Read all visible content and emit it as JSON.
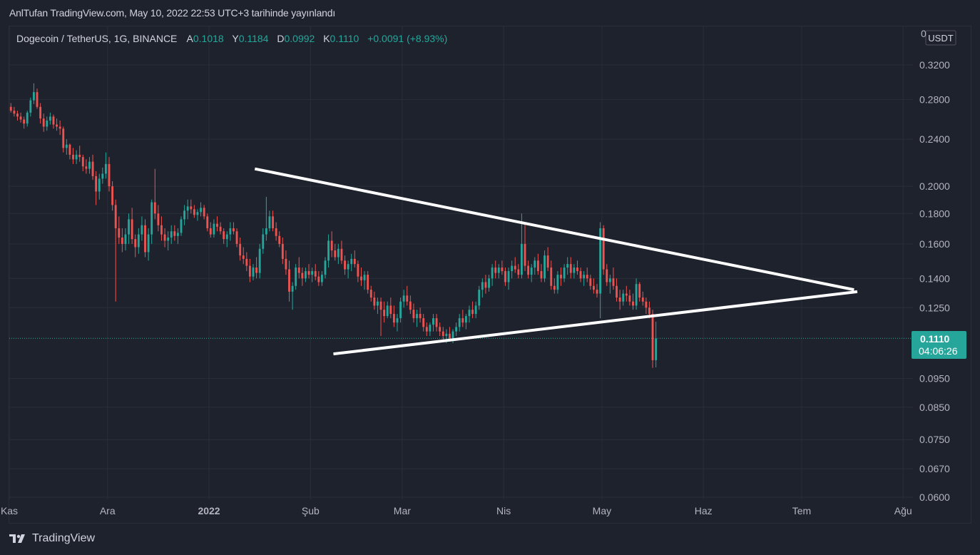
{
  "header": {
    "published": "AnlTufan TradingView.com, May 10, 2022 22:53 UTC+3 tarihinde yayınlandı"
  },
  "legend": {
    "symbol": "Dogecoin / TetherUS, 1G, BINANCE",
    "open_label": "A",
    "open": "0.1018",
    "high_label": "Y",
    "high": "0.1184",
    "low_label": "D",
    "low": "0.0992",
    "close_label": "K",
    "close": "0.1110",
    "change": "+0.0091 (+8.93%)"
  },
  "price_axis": {
    "currency": "USDT",
    "current_price": "0.1110",
    "countdown": "04:06:26"
  },
  "footer": {
    "brand": "TradingView"
  },
  "colors": {
    "background": "#1e222d",
    "up": "#26a69a",
    "down": "#ef5350",
    "grid": "#2a2e39",
    "text": "#b2b5be",
    "trendline": "#ffffff"
  },
  "chart_data": {
    "type": "candlestick",
    "scale": "log",
    "y_ticks": [
      0.32,
      0.28,
      0.24,
      0.2,
      0.18,
      0.16,
      0.14,
      0.125,
      0.095,
      0.085,
      0.075,
      0.067,
      0.06
    ],
    "y_tick_labels": [
      "0.3200",
      "0.2800",
      "0.2400",
      "0.2000",
      "0.1800",
      "0.1600",
      "0.1400",
      "0.1250",
      "0.0950",
      "0.0850",
      "0.0750",
      "0.0670",
      "0.0600"
    ],
    "y_top_partial_label": "0",
    "x_start": "2021-11-01",
    "x_end": "2022-08-04",
    "x_ticks": [
      {
        "date": "2021-11-01",
        "label": "Kas",
        "bold": false
      },
      {
        "date": "2021-12-01",
        "label": "Ara",
        "bold": false
      },
      {
        "date": "2022-01-01",
        "label": "2022",
        "bold": true
      },
      {
        "date": "2022-02-01",
        "label": "Şub",
        "bold": false
      },
      {
        "date": "2022-03-01",
        "label": "Mar",
        "bold": false
      },
      {
        "date": "2022-04-01",
        "label": "Nis",
        "bold": false
      },
      {
        "date": "2022-05-01",
        "label": "May",
        "bold": false
      },
      {
        "date": "2022-06-01",
        "label": "Haz",
        "bold": false
      },
      {
        "date": "2022-07-01",
        "label": "Tem",
        "bold": false
      },
      {
        "date": "2022-08-01",
        "label": "Ağu",
        "bold": false
      }
    ],
    "last_price": 0.111,
    "candles_ohlc_daily_from_2021-11-01": [
      [
        0.272,
        0.276,
        0.266,
        0.268
      ],
      [
        0.268,
        0.272,
        0.262,
        0.265
      ],
      [
        0.265,
        0.268,
        0.258,
        0.262
      ],
      [
        0.262,
        0.266,
        0.256,
        0.259
      ],
      [
        0.259,
        0.262,
        0.25,
        0.255
      ],
      [
        0.255,
        0.268,
        0.252,
        0.266
      ],
      [
        0.266,
        0.282,
        0.262,
        0.279
      ],
      [
        0.279,
        0.298,
        0.275,
        0.288
      ],
      [
        0.288,
        0.292,
        0.27,
        0.272
      ],
      [
        0.272,
        0.276,
        0.255,
        0.26
      ],
      [
        0.26,
        0.265,
        0.247,
        0.252
      ],
      [
        0.252,
        0.262,
        0.248,
        0.258
      ],
      [
        0.258,
        0.266,
        0.254,
        0.262
      ],
      [
        0.262,
        0.264,
        0.25,
        0.254
      ],
      [
        0.254,
        0.26,
        0.248,
        0.252
      ],
      [
        0.252,
        0.258,
        0.244,
        0.25
      ],
      [
        0.25,
        0.252,
        0.228,
        0.232
      ],
      [
        0.232,
        0.24,
        0.226,
        0.235
      ],
      [
        0.235,
        0.236,
        0.222,
        0.226
      ],
      [
        0.226,
        0.232,
        0.218,
        0.222
      ],
      [
        0.222,
        0.23,
        0.218,
        0.226
      ],
      [
        0.226,
        0.234,
        0.22,
        0.224
      ],
      [
        0.224,
        0.226,
        0.212,
        0.216
      ],
      [
        0.216,
        0.222,
        0.21,
        0.214
      ],
      [
        0.214,
        0.224,
        0.21,
        0.22
      ],
      [
        0.22,
        0.226,
        0.205,
        0.208
      ],
      [
        0.208,
        0.212,
        0.186,
        0.196
      ],
      [
        0.196,
        0.21,
        0.19,
        0.206
      ],
      [
        0.206,
        0.215,
        0.202,
        0.21
      ],
      [
        0.21,
        0.228,
        0.206,
        0.218
      ],
      [
        0.218,
        0.224,
        0.196,
        0.2
      ],
      [
        0.2,
        0.204,
        0.182,
        0.186
      ],
      [
        0.186,
        0.19,
        0.128,
        0.17
      ],
      [
        0.17,
        0.178,
        0.16,
        0.164
      ],
      [
        0.164,
        0.17,
        0.155,
        0.16
      ],
      [
        0.16,
        0.17,
        0.156,
        0.166
      ],
      [
        0.166,
        0.18,
        0.16,
        0.176
      ],
      [
        0.176,
        0.184,
        0.16,
        0.163
      ],
      [
        0.163,
        0.166,
        0.152,
        0.158
      ],
      [
        0.158,
        0.17,
        0.154,
        0.166
      ],
      [
        0.166,
        0.178,
        0.162,
        0.172
      ],
      [
        0.172,
        0.176,
        0.152,
        0.155
      ],
      [
        0.155,
        0.17,
        0.15,
        0.166
      ],
      [
        0.166,
        0.19,
        0.16,
        0.188
      ],
      [
        0.188,
        0.214,
        0.176,
        0.18
      ],
      [
        0.18,
        0.186,
        0.168,
        0.172
      ],
      [
        0.172,
        0.178,
        0.162,
        0.166
      ],
      [
        0.166,
        0.17,
        0.158,
        0.162
      ],
      [
        0.162,
        0.168,
        0.156,
        0.164
      ],
      [
        0.164,
        0.172,
        0.16,
        0.168
      ],
      [
        0.168,
        0.172,
        0.162,
        0.165
      ],
      [
        0.165,
        0.17,
        0.16,
        0.167
      ],
      [
        0.167,
        0.178,
        0.165,
        0.176
      ],
      [
        0.176,
        0.186,
        0.172,
        0.182
      ],
      [
        0.182,
        0.19,
        0.176,
        0.185
      ],
      [
        0.185,
        0.19,
        0.18,
        0.183
      ],
      [
        0.183,
        0.186,
        0.177,
        0.179
      ],
      [
        0.179,
        0.183,
        0.175,
        0.181
      ],
      [
        0.181,
        0.188,
        0.178,
        0.184
      ],
      [
        0.184,
        0.186,
        0.176,
        0.178
      ],
      [
        0.178,
        0.18,
        0.168,
        0.17
      ],
      [
        0.17,
        0.174,
        0.164,
        0.166
      ],
      [
        0.166,
        0.176,
        0.164,
        0.173
      ],
      [
        0.173,
        0.178,
        0.168,
        0.171
      ],
      [
        0.171,
        0.174,
        0.166,
        0.168
      ],
      [
        0.168,
        0.17,
        0.16,
        0.163
      ],
      [
        0.163,
        0.168,
        0.158,
        0.166
      ],
      [
        0.166,
        0.174,
        0.162,
        0.17
      ],
      [
        0.17,
        0.174,
        0.166,
        0.168
      ],
      [
        0.168,
        0.17,
        0.158,
        0.16
      ],
      [
        0.16,
        0.164,
        0.15,
        0.153
      ],
      [
        0.153,
        0.158,
        0.148,
        0.151
      ],
      [
        0.151,
        0.155,
        0.144,
        0.147
      ],
      [
        0.147,
        0.151,
        0.138,
        0.141
      ],
      [
        0.141,
        0.148,
        0.139,
        0.146
      ],
      [
        0.146,
        0.152,
        0.14,
        0.143
      ],
      [
        0.143,
        0.16,
        0.14,
        0.157
      ],
      [
        0.157,
        0.17,
        0.154,
        0.166
      ],
      [
        0.166,
        0.192,
        0.162,
        0.17
      ],
      [
        0.17,
        0.182,
        0.168,
        0.178
      ],
      [
        0.178,
        0.182,
        0.168,
        0.17
      ],
      [
        0.17,
        0.174,
        0.162,
        0.165
      ],
      [
        0.165,
        0.168,
        0.158,
        0.16
      ],
      [
        0.16,
        0.164,
        0.148,
        0.151
      ],
      [
        0.151,
        0.156,
        0.142,
        0.145
      ],
      [
        0.145,
        0.15,
        0.128,
        0.133
      ],
      [
        0.133,
        0.138,
        0.124,
        0.136
      ],
      [
        0.136,
        0.148,
        0.134,
        0.146
      ],
      [
        0.146,
        0.152,
        0.14,
        0.143
      ],
      [
        0.143,
        0.146,
        0.136,
        0.14
      ],
      [
        0.14,
        0.146,
        0.138,
        0.144
      ],
      [
        0.144,
        0.148,
        0.14,
        0.142
      ],
      [
        0.142,
        0.146,
        0.138,
        0.144
      ],
      [
        0.144,
        0.148,
        0.139,
        0.141
      ],
      [
        0.141,
        0.144,
        0.136,
        0.138
      ],
      [
        0.138,
        0.144,
        0.136,
        0.142
      ],
      [
        0.142,
        0.152,
        0.14,
        0.15
      ],
      [
        0.15,
        0.166,
        0.146,
        0.162
      ],
      [
        0.162,
        0.168,
        0.152,
        0.156
      ],
      [
        0.156,
        0.16,
        0.15,
        0.152
      ],
      [
        0.152,
        0.16,
        0.148,
        0.157
      ],
      [
        0.157,
        0.162,
        0.148,
        0.15
      ],
      [
        0.15,
        0.153,
        0.142,
        0.145
      ],
      [
        0.145,
        0.15,
        0.14,
        0.148
      ],
      [
        0.148,
        0.154,
        0.144,
        0.151
      ],
      [
        0.151,
        0.156,
        0.146,
        0.148
      ],
      [
        0.148,
        0.15,
        0.138,
        0.141
      ],
      [
        0.141,
        0.146,
        0.136,
        0.139
      ],
      [
        0.139,
        0.144,
        0.134,
        0.142
      ],
      [
        0.142,
        0.144,
        0.132,
        0.134
      ],
      [
        0.134,
        0.136,
        0.128,
        0.13
      ],
      [
        0.13,
        0.133,
        0.124,
        0.126
      ],
      [
        0.126,
        0.13,
        0.122,
        0.128
      ],
      [
        0.128,
        0.13,
        0.112,
        0.124
      ],
      [
        0.124,
        0.128,
        0.118,
        0.121
      ],
      [
        0.121,
        0.128,
        0.12,
        0.126
      ],
      [
        0.126,
        0.13,
        0.12,
        0.122
      ],
      [
        0.122,
        0.126,
        0.116,
        0.118
      ],
      [
        0.118,
        0.122,
        0.114,
        0.12
      ],
      [
        0.12,
        0.13,
        0.118,
        0.128
      ],
      [
        0.128,
        0.134,
        0.125,
        0.131
      ],
      [
        0.131,
        0.136,
        0.126,
        0.128
      ],
      [
        0.128,
        0.131,
        0.122,
        0.124
      ],
      [
        0.124,
        0.127,
        0.118,
        0.12
      ],
      [
        0.12,
        0.124,
        0.116,
        0.122
      ],
      [
        0.122,
        0.125,
        0.118,
        0.12
      ],
      [
        0.12,
        0.122,
        0.114,
        0.116
      ],
      [
        0.116,
        0.118,
        0.112,
        0.114
      ],
      [
        0.114,
        0.118,
        0.112,
        0.117
      ],
      [
        0.117,
        0.122,
        0.114,
        0.12
      ],
      [
        0.12,
        0.122,
        0.114,
        0.116
      ],
      [
        0.116,
        0.118,
        0.112,
        0.114
      ],
      [
        0.114,
        0.116,
        0.11,
        0.112
      ],
      [
        0.112,
        0.115,
        0.109,
        0.113
      ],
      [
        0.113,
        0.116,
        0.11,
        0.111
      ],
      [
        0.111,
        0.115,
        0.109,
        0.114
      ],
      [
        0.114,
        0.118,
        0.112,
        0.116
      ],
      [
        0.116,
        0.122,
        0.114,
        0.12
      ],
      [
        0.12,
        0.124,
        0.116,
        0.118
      ],
      [
        0.118,
        0.122,
        0.115,
        0.121
      ],
      [
        0.121,
        0.126,
        0.118,
        0.124
      ],
      [
        0.124,
        0.128,
        0.12,
        0.122
      ],
      [
        0.122,
        0.128,
        0.12,
        0.126
      ],
      [
        0.126,
        0.136,
        0.124,
        0.134
      ],
      [
        0.134,
        0.14,
        0.13,
        0.138
      ],
      [
        0.138,
        0.142,
        0.132,
        0.135
      ],
      [
        0.135,
        0.142,
        0.133,
        0.14
      ],
      [
        0.14,
        0.148,
        0.136,
        0.146
      ],
      [
        0.146,
        0.15,
        0.14,
        0.143
      ],
      [
        0.143,
        0.148,
        0.14,
        0.146
      ],
      [
        0.146,
        0.15,
        0.142,
        0.144
      ],
      [
        0.144,
        0.146,
        0.136,
        0.138
      ],
      [
        0.138,
        0.146,
        0.134,
        0.144
      ],
      [
        0.144,
        0.15,
        0.14,
        0.147
      ],
      [
        0.147,
        0.152,
        0.143,
        0.145
      ],
      [
        0.145,
        0.148,
        0.14,
        0.142
      ],
      [
        0.142,
        0.18,
        0.14,
        0.16
      ],
      [
        0.16,
        0.174,
        0.144,
        0.147
      ],
      [
        0.147,
        0.15,
        0.14,
        0.142
      ],
      [
        0.142,
        0.148,
        0.138,
        0.146
      ],
      [
        0.146,
        0.152,
        0.142,
        0.15
      ],
      [
        0.15,
        0.154,
        0.142,
        0.144
      ],
      [
        0.144,
        0.148,
        0.138,
        0.14
      ],
      [
        0.14,
        0.156,
        0.138,
        0.153
      ],
      [
        0.153,
        0.158,
        0.144,
        0.146
      ],
      [
        0.146,
        0.15,
        0.134,
        0.136
      ],
      [
        0.136,
        0.14,
        0.132,
        0.134
      ],
      [
        0.134,
        0.144,
        0.132,
        0.142
      ],
      [
        0.142,
        0.146,
        0.136,
        0.14
      ],
      [
        0.14,
        0.148,
        0.138,
        0.146
      ],
      [
        0.146,
        0.152,
        0.142,
        0.148
      ],
      [
        0.148,
        0.152,
        0.14,
        0.143
      ],
      [
        0.143,
        0.148,
        0.14,
        0.146
      ],
      [
        0.146,
        0.15,
        0.142,
        0.144
      ],
      [
        0.144,
        0.146,
        0.138,
        0.14
      ],
      [
        0.14,
        0.144,
        0.136,
        0.142
      ],
      [
        0.142,
        0.146,
        0.138,
        0.14
      ],
      [
        0.14,
        0.142,
        0.134,
        0.136
      ],
      [
        0.136,
        0.14,
        0.132,
        0.134
      ],
      [
        0.134,
        0.137,
        0.13,
        0.132
      ],
      [
        0.132,
        0.174,
        0.12,
        0.17
      ],
      [
        0.17,
        0.172,
        0.142,
        0.145
      ],
      [
        0.145,
        0.148,
        0.136,
        0.138
      ],
      [
        0.138,
        0.142,
        0.132,
        0.14
      ],
      [
        0.14,
        0.146,
        0.134,
        0.136
      ],
      [
        0.136,
        0.14,
        0.128,
        0.13
      ],
      [
        0.13,
        0.134,
        0.124,
        0.128
      ],
      [
        0.128,
        0.134,
        0.126,
        0.132
      ],
      [
        0.132,
        0.136,
        0.128,
        0.131
      ],
      [
        0.131,
        0.134,
        0.126,
        0.128
      ],
      [
        0.128,
        0.132,
        0.124,
        0.126
      ],
      [
        0.126,
        0.14,
        0.124,
        0.137
      ],
      [
        0.137,
        0.138,
        0.128,
        0.13
      ],
      [
        0.13,
        0.133,
        0.126,
        0.128
      ],
      [
        0.128,
        0.13,
        0.122,
        0.125
      ],
      [
        0.125,
        0.128,
        0.12,
        0.122
      ],
      [
        0.122,
        0.124,
        0.099,
        0.102
      ],
      [
        0.102,
        0.1184,
        0.0992,
        0.111
      ]
    ],
    "trendlines": [
      {
        "name": "descending-resistance",
        "from": {
          "date": "2022-01-15",
          "price": 0.214
        },
        "to": {
          "date": "2022-07-17",
          "price": 0.134
        }
      },
      {
        "name": "ascending-support",
        "from": {
          "date": "2022-02-08",
          "price": 0.1045
        },
        "to": {
          "date": "2022-07-18",
          "price": 0.133
        }
      }
    ]
  }
}
